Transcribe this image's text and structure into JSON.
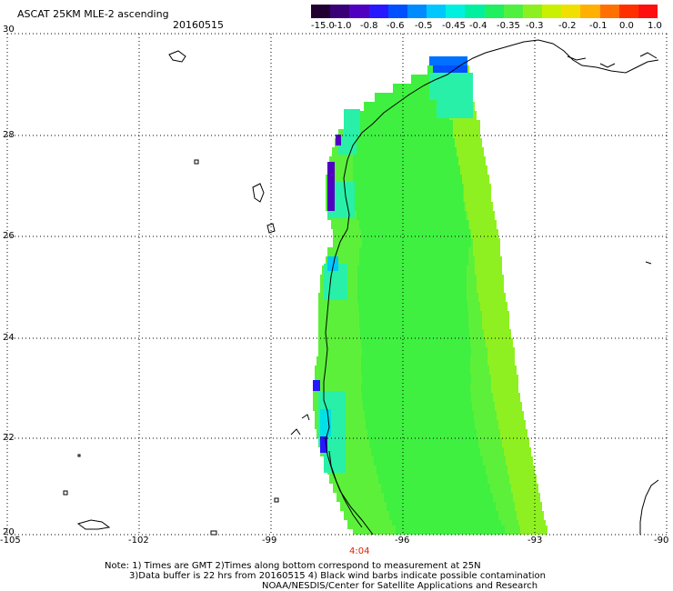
{
  "header": {
    "title": "ASCAT 25KM MLE-2 ascending",
    "date": "20160515"
  },
  "colorbar": {
    "colors": [
      "#200030",
      "#3a0078",
      "#5000c0",
      "#2818ff",
      "#0050ff",
      "#008cff",
      "#00c8ff",
      "#00f0e0",
      "#00f0a0",
      "#20f060",
      "#50f040",
      "#8cf020",
      "#c8f000",
      "#f0e000",
      "#ffb000",
      "#ff7000",
      "#ff3000",
      "#ff1010"
    ],
    "labels": [
      "-15.0",
      "-1.0",
      "-0.8",
      "-0.6",
      "-0.5",
      "-0.45",
      "-0.4",
      "-0.35",
      "-0.3",
      "-0.2",
      "-0.1",
      "0.0",
      "1.0"
    ]
  },
  "axes": {
    "lat_labels": [
      "30",
      "28",
      "26",
      "24",
      "22",
      "20"
    ],
    "lon_labels": [
      "-105",
      "-102",
      "-99",
      "-96",
      "-93",
      "-90"
    ]
  },
  "time_label": "4:04",
  "notes": {
    "line1": "Note: 1) Times are GMT 2)Times along bottom correspond to measurement at 25N",
    "line2": "3)Data buffer is 22 hrs from 20160515 4) Black wind barbs indicate possible contamination",
    "line3": "NOAA/NESDIS/Center for Satellite Applications and Research"
  }
}
